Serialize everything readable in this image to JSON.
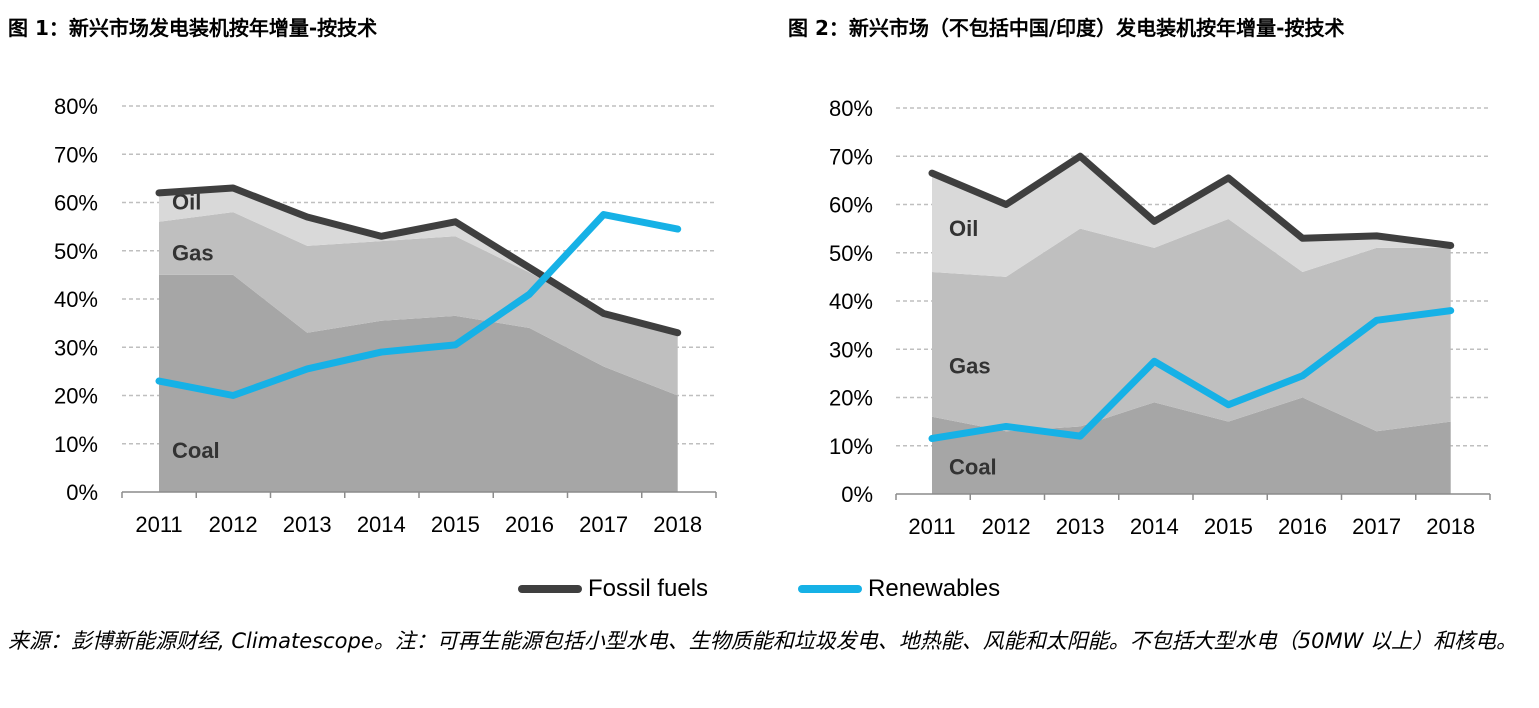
{
  "titles": {
    "chart1": "图 1：新兴市场发电装机按年增量-按技术",
    "chart2": "图 2：新兴市场（不包括中国/印度）发电装机按年增量-按技术"
  },
  "legend": {
    "fossil": "Fossil fuels",
    "renewables": "Renewables"
  },
  "source": "来源：彭博新能源财经, Climatescope。注：可再生能源包括小型水电、生物质能和垃圾发电、地热能、风能和太阳能。不包括大型水电（50MW 以上）和核电。",
  "colors": {
    "fossil": "#3f3f3f",
    "renewables": "#16b1e6",
    "coal": "#a6a6a6",
    "gas": "#bfbfbf",
    "oil": "#d9d9d9",
    "grid": "#bfbfbf"
  },
  "chart_data": [
    {
      "type": "area",
      "x": [
        "2011",
        "2012",
        "2013",
        "2014",
        "2015",
        "2016",
        "2017",
        "2018"
      ],
      "ylim": [
        0,
        80
      ],
      "yticks": [
        "0%",
        "10%",
        "20%",
        "30%",
        "40%",
        "50%",
        "60%",
        "70%",
        "80%"
      ],
      "grid": true,
      "stacked_areas": [
        {
          "name": "Coal",
          "values": [
            45,
            45,
            33,
            35.5,
            36.5,
            34,
            26,
            20
          ]
        },
        {
          "name": "Gas",
          "values": [
            11,
            13,
            18,
            16.5,
            16.5,
            11.5,
            11,
            13
          ]
        },
        {
          "name": "Oil",
          "values": [
            6,
            5,
            5.5,
            1,
            3,
            1,
            0,
            0
          ]
        }
      ],
      "lines": [
        {
          "name": "Fossil fuels",
          "values": [
            62,
            63,
            57,
            53,
            56,
            46.5,
            37,
            33
          ]
        },
        {
          "name": "Renewables",
          "values": [
            23,
            20,
            25.5,
            29,
            30.5,
            41,
            57.5,
            54.5
          ]
        }
      ]
    },
    {
      "type": "area",
      "x": [
        "2011",
        "2012",
        "2013",
        "2014",
        "2015",
        "2016",
        "2017",
        "2018"
      ],
      "ylim": [
        0,
        80
      ],
      "yticks": [
        "0%",
        "10%",
        "20%",
        "30%",
        "40%",
        "50%",
        "60%",
        "70%",
        "80%"
      ],
      "grid": true,
      "stacked_areas": [
        {
          "name": "Coal",
          "values": [
            16,
            13,
            14,
            19,
            15,
            20,
            13,
            15
          ]
        },
        {
          "name": "Gas",
          "values": [
            30,
            32,
            41,
            32,
            42,
            26,
            38,
            36
          ]
        },
        {
          "name": "Oil",
          "values": [
            20.5,
            15,
            15,
            6,
            8.5,
            7,
            2.5,
            0.5
          ]
        }
      ],
      "lines": [
        {
          "name": "Fossil fuels",
          "values": [
            66.5,
            60,
            70,
            56.5,
            65.5,
            53,
            53.5,
            51.5
          ]
        },
        {
          "name": "Renewables",
          "values": [
            11.5,
            14,
            12,
            27.5,
            18.5,
            24.5,
            36,
            38
          ]
        }
      ]
    }
  ]
}
